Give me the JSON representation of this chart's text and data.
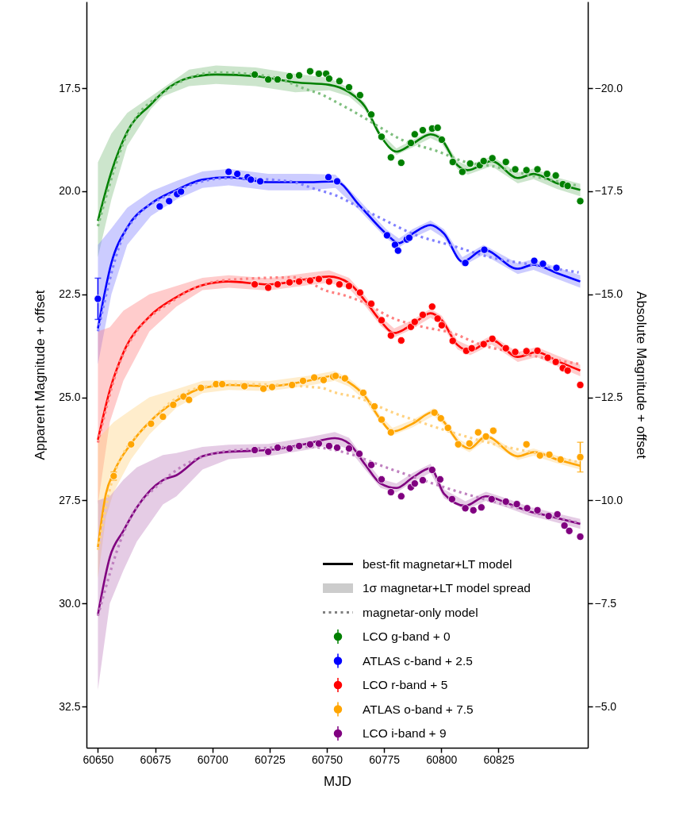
{
  "chart_data": {
    "type": "line",
    "xlabel": "MJD",
    "ylabel": "Apparent Magnitude + offset",
    "y2label": "Absolute Magnitude + offset",
    "xlim": [
      60645,
      60864
    ],
    "xticks": [
      60650,
      60675,
      60700,
      60725,
      60750,
      60775,
      60800,
      60825
    ],
    "ylim": [
      33.5,
      15.4
    ],
    "yticks": [
      17.5,
      {
        "value": 20.0,
        "label": "20.0"
      },
      22.5,
      {
        "value": 25.0,
        "label": "25.0"
      },
      27.5,
      {
        "value": 30.0,
        "label": "30.0"
      },
      32.5
    ],
    "y2lim": [
      -4.0,
      -22.1
    ],
    "y2ticks": [
      {
        "value": -20,
        "label": "−20.0"
      },
      {
        "value": -17.5,
        "label": "−17.5"
      },
      {
        "value": -15,
        "label": "−15.0"
      },
      {
        "value": -12.5,
        "label": "−12.5"
      },
      {
        "value": -10,
        "label": "−10.0"
      },
      {
        "value": -7.5,
        "label": "−7.5"
      },
      {
        "value": -5,
        "label": "−5.0"
      }
    ],
    "grid": false,
    "legend": "bottom right",
    "marker": "circle",
    "annotations": [
      "best-fit magnetar+LT model",
      "1σ magnetar+LT model spread",
      "magnetar-only model"
    ],
    "series": [
      {
        "line_style": "solid",
        "marker": "none",
        "color": "#008000",
        "x": [
          60650,
          60655.9,
          60662.8,
          60673.2,
          60678.4,
          60689.8,
          60701.6,
          60718.9,
          60736.2,
          60751.0,
          60759.7,
          60766.6,
          60773.5,
          60780.4,
          60787.4,
          60795.3,
          60800.2,
          60807.1,
          60811.6,
          60822,
          60833.4,
          60840.3,
          60850.7,
          60860.7
        ],
        "values": [
          20.72,
          19.53,
          18.56,
          17.89,
          17.6,
          17.25,
          17.17,
          17.21,
          17.36,
          17.42,
          17.6,
          17.94,
          18.66,
          19.04,
          18.85,
          18.62,
          18.75,
          19.37,
          19.49,
          19.27,
          19.68,
          19.58,
          19.81,
          19.97
        ],
        "lower": [
          19.3,
          18.6,
          18.1,
          17.7,
          17.5,
          17.05,
          16.95,
          17.0,
          17.15,
          17.25,
          17.5,
          17.85,
          18.58,
          18.96,
          18.76,
          18.53,
          18.66,
          19.27,
          19.38,
          19.15,
          19.55,
          19.45,
          19.67,
          19.82
        ],
        "upper": [
          21.6,
          20.2,
          18.9,
          18.0,
          17.7,
          17.45,
          17.4,
          17.45,
          17.6,
          17.55,
          17.7,
          18.03,
          18.74,
          19.12,
          18.94,
          18.71,
          18.84,
          19.47,
          19.6,
          19.39,
          19.81,
          19.71,
          19.95,
          20.12
        ]
      },
      {
        "line_style": "dotted",
        "marker": "none",
        "color": "#7fbf7f",
        "x": [
          60650,
          60662.8,
          60678.4,
          60701.6,
          60724.4,
          60741.7,
          60747.6,
          60753.8,
          60762.1,
          60773.5,
          60781.5,
          60798.8,
          60810.5,
          60822,
          60839.3,
          60860
        ],
        "values": [
          20.85,
          18.6,
          17.62,
          17.12,
          17.21,
          17.54,
          17.65,
          17.83,
          18.08,
          18.46,
          18.72,
          19.04,
          19.29,
          19.39,
          19.62,
          19.87
        ]
      },
      {
        "type": "scatter",
        "name": "LCO g-band + 0",
        "color": "#008000",
        "x": [
          60718.5,
          60724.4,
          60728.5,
          60733.7,
          60737.9,
          60742.7,
          60746.5,
          60749.7,
          60751.0,
          60755.5,
          60759.7,
          60764.5,
          60769.4,
          60773.9,
          60778.0,
          60782.5,
          60786.7,
          60788.4,
          60791.9,
          60796.0,
          60798.4,
          60800.2,
          60805.0,
          60809.2,
          60812.6,
          60816.8,
          60818.5,
          60822.3,
          60828.2,
          60832.3,
          60837.2,
          60842.0,
          60846.2,
          60850.0,
          60853.1,
          60855.2,
          60860.7
        ],
        "values": [
          17.17,
          17.29,
          17.29,
          17.21,
          17.19,
          17.09,
          17.15,
          17.15,
          17.27,
          17.33,
          17.48,
          17.67,
          18.14,
          18.68,
          19.18,
          19.31,
          18.83,
          18.62,
          18.52,
          18.48,
          18.46,
          18.75,
          19.29,
          19.53,
          19.33,
          19.37,
          19.27,
          19.2,
          19.29,
          19.47,
          19.49,
          19.47,
          19.58,
          19.62,
          19.83,
          19.87,
          20.24
        ]
      },
      {
        "line_style": "solid",
        "marker": "none",
        "color": "#0000ff",
        "x": [
          60650,
          60655.9,
          60662.8,
          60673.2,
          60684.3,
          60695.7,
          60707.1,
          60724.4,
          60741.7,
          60753.8,
          60764.2,
          60775.9,
          60781.5,
          60787.4,
          60795.3,
          60801.2,
          60809.2,
          60818.5,
          60833.4,
          60840.3,
          60850.7,
          60860.7
        ],
        "values": [
          23.33,
          21.74,
          20.88,
          20.3,
          19.97,
          19.72,
          19.66,
          19.78,
          19.78,
          19.76,
          20.34,
          21.03,
          21.26,
          21.03,
          20.82,
          21.03,
          21.71,
          21.42,
          21.88,
          21.78,
          21.99,
          22.19
        ],
        "lower": [
          21.3,
          20.9,
          20.4,
          20.0,
          19.75,
          19.52,
          19.46,
          19.58,
          19.58,
          19.6,
          20.22,
          20.92,
          21.15,
          20.92,
          20.71,
          20.92,
          21.6,
          21.3,
          21.75,
          21.65,
          21.85,
          22.04
        ],
        "upper": [
          24.2,
          22.5,
          21.3,
          20.6,
          20.2,
          19.92,
          19.86,
          19.98,
          19.98,
          19.92,
          20.46,
          21.14,
          21.37,
          21.14,
          20.93,
          21.14,
          21.82,
          21.54,
          22.01,
          21.91,
          22.13,
          22.34
        ]
      },
      {
        "line_style": "dotted",
        "marker": "none",
        "color": "#8080ff",
        "x": [
          60650,
          60662.8,
          60684.3,
          60707.1,
          60733.7,
          60745.1,
          60753.8,
          60764.2,
          60775.9,
          60787.4,
          60804.7,
          60822,
          60839.3,
          60860
        ],
        "values": [
          23.4,
          20.9,
          20.0,
          19.68,
          19.76,
          19.95,
          20.1,
          20.39,
          20.72,
          21.03,
          21.32,
          21.61,
          21.78,
          21.97
        ]
      },
      {
        "type": "scatter",
        "name": "ATLAS c-band + 2.5",
        "color": "#0000ff",
        "x": [
          60650,
          60677.0,
          60681.1,
          60684.6,
          60686.3,
          60707.1,
          60710.9,
          60715.4,
          60716.8,
          60720.9,
          60750.7,
          60754.5,
          60776.3,
          60779.8,
          60781.1,
          60784.9,
          60786.0,
          60810.5,
          60818.8,
          60840.6,
          60844.4,
          60850.3
        ],
        "values": [
          22.61,
          20.37,
          20.24,
          20.07,
          20.01,
          19.53,
          19.58,
          19.66,
          19.72,
          19.76,
          19.66,
          19.76,
          21.07,
          21.3,
          21.44,
          21.17,
          21.13,
          21.74,
          21.42,
          21.69,
          21.76,
          21.86
        ],
        "errors": [
          0.5,
          null,
          null,
          null,
          null,
          null,
          null,
          null,
          null,
          null,
          null,
          null,
          null,
          null,
          null,
          null,
          null,
          null,
          null,
          null,
          null,
          null
        ]
      },
      {
        "line_style": "solid",
        "marker": "none",
        "color": "#ff0000",
        "x": [
          60650,
          60655.2,
          60661.1,
          60672.5,
          60684.3,
          60695.7,
          60707.1,
          60724.4,
          60741.7,
          60751,
          60759.7,
          60766.6,
          60773.5,
          60779.4,
          60787.4,
          60795.3,
          60800.2,
          60807.1,
          60812.6,
          60822,
          60833.4,
          60841.7,
          60850.7,
          60860.7
        ],
        "values": [
          26.03,
          24.83,
          23.92,
          23.04,
          22.57,
          22.28,
          22.19,
          22.26,
          22.13,
          22.07,
          22.23,
          22.65,
          23.15,
          23.44,
          23.23,
          22.96,
          23.13,
          23.73,
          23.87,
          23.61,
          24.02,
          23.9,
          24.12,
          24.35
        ],
        "lower": [
          23.4,
          23.3,
          22.9,
          22.5,
          22.3,
          22.1,
          22.04,
          22.11,
          21.98,
          21.92,
          22.1,
          22.53,
          23.04,
          23.33,
          23.12,
          22.85,
          23.02,
          23.62,
          23.76,
          23.5,
          23.9,
          23.78,
          23.99,
          24.21
        ],
        "upper": [
          27.6,
          25.6,
          24.6,
          23.4,
          22.8,
          22.4,
          22.34,
          22.41,
          22.28,
          22.22,
          22.36,
          22.77,
          23.26,
          23.55,
          23.34,
          23.07,
          23.24,
          23.84,
          23.98,
          23.72,
          24.14,
          24.02,
          24.25,
          24.49
        ]
      },
      {
        "line_style": "dotted",
        "marker": "none",
        "color": "#ff8080",
        "x": [
          60650,
          60661.1,
          60684.3,
          60707.1,
          60736.2,
          60750,
          60757.3,
          60766.6,
          60778,
          60791.9,
          60804.7,
          60817.5,
          60833.4,
          60860
        ],
        "values": [
          26.1,
          23.95,
          22.6,
          22.15,
          22.09,
          22.42,
          22.52,
          22.71,
          23.06,
          23.29,
          23.44,
          23.73,
          23.92,
          24.19
        ]
      },
      {
        "type": "scatter",
        "name": "LCO r-band + 5",
        "color": "#ff0000",
        "x": [
          60718.5,
          60724.4,
          60728.5,
          60733.7,
          60737.9,
          60742.7,
          60746.5,
          60751,
          60755.5,
          60759.7,
          60764.5,
          60769.4,
          60773.9,
          60778,
          60782.5,
          60786.7,
          60788.4,
          60791.9,
          60796,
          60798.4,
          60800.2,
          60805,
          60810.9,
          60813.3,
          60818.5,
          60822.3,
          60828.2,
          60832.3,
          60837.2,
          60842,
          60846.5,
          60850,
          60853.1,
          60855.2,
          60860.7
        ],
        "values": [
          22.26,
          22.34,
          22.26,
          22.21,
          22.19,
          22.17,
          22.13,
          22.19,
          22.26,
          22.3,
          22.46,
          22.73,
          23.13,
          23.5,
          23.62,
          23.29,
          23.17,
          23.0,
          22.8,
          23.09,
          23.25,
          23.63,
          23.87,
          23.81,
          23.71,
          23.58,
          23.81,
          23.9,
          23.88,
          23.87,
          24.04,
          24.14,
          24.29,
          24.35,
          24.7
        ]
      },
      {
        "line_style": "solid",
        "marker": "none",
        "color": "#ffa500",
        "x": [
          60650,
          60653.5,
          60656.9,
          60664.5,
          60672.5,
          60684.3,
          60695.7,
          60707.1,
          60724.4,
          60741.7,
          60753.5,
          60759.7,
          60766.6,
          60773.5,
          60778.7,
          60787.4,
          60796.7,
          60801.2,
          60808.1,
          60812.3,
          60819.5,
          60833.4,
          60840.3,
          60850.7,
          60860.7
        ],
        "values": [
          28.63,
          27.34,
          26.82,
          26.12,
          25.6,
          25.08,
          24.77,
          24.7,
          24.73,
          24.6,
          24.48,
          24.64,
          24.97,
          25.54,
          25.83,
          25.64,
          25.35,
          25.6,
          26.12,
          26.24,
          25.95,
          26.43,
          26.33,
          26.51,
          26.66
        ],
        "lower": [
          26.0,
          25.8,
          25.6,
          25.3,
          25.0,
          24.8,
          24.6,
          24.58,
          24.61,
          24.48,
          24.36,
          24.54,
          24.87,
          25.45,
          25.74,
          25.55,
          25.26,
          25.51,
          26.03,
          26.15,
          25.86,
          26.34,
          26.24,
          26.42,
          26.57
        ],
        "upper": [
          29.4,
          27.9,
          27.3,
          26.5,
          25.9,
          25.25,
          24.9,
          24.82,
          24.85,
          24.72,
          24.6,
          24.74,
          25.07,
          25.63,
          25.92,
          25.73,
          25.44,
          25.69,
          26.21,
          26.33,
          26.04,
          26.52,
          26.42,
          26.6,
          26.75
        ]
      },
      {
        "line_style": "dotted",
        "marker": "none",
        "color": "#ffd280",
        "x": [
          60650,
          60656.9,
          60672.5,
          60695.7,
          60713,
          60747.6,
          60752.8,
          60764.2,
          60778,
          60790.8,
          60804.7,
          60822,
          60839.3,
          60860
        ],
        "values": [
          28.7,
          26.9,
          25.62,
          24.75,
          24.68,
          24.77,
          24.87,
          25.02,
          25.35,
          25.6,
          25.85,
          26.12,
          26.33,
          26.57
        ]
      },
      {
        "type": "scatter",
        "name": "ATLAS o-band + 7.5",
        "color": "#ffa500",
        "x": [
          60656.9,
          60664.5,
          60673.2,
          60678.4,
          60682.9,
          60687.4,
          60689.8,
          60695,
          60701.6,
          60704.3,
          60714,
          60722.3,
          60726.1,
          60734.8,
          60739.6,
          60744.5,
          60748.6,
          60752.8,
          60753.8,
          60757.9,
          60765.9,
          60770.8,
          60773.9,
          60778,
          60797,
          60799.8,
          60802.9,
          60807.4,
          60812.3,
          60816.1,
          60819.5,
          60822.7,
          60837.2,
          60843.1,
          60847.2,
          60852.1,
          60860.7
        ],
        "values": [
          26.91,
          26.14,
          25.64,
          25.47,
          25.18,
          24.98,
          25.06,
          24.77,
          24.68,
          24.68,
          24.73,
          24.79,
          24.75,
          24.7,
          24.6,
          24.52,
          24.58,
          24.5,
          24.48,
          24.54,
          24.89,
          25.22,
          25.54,
          25.85,
          25.37,
          25.51,
          25.74,
          26.14,
          26.12,
          25.85,
          25.95,
          25.81,
          26.14,
          26.41,
          26.39,
          26.51,
          26.45
        ],
        "errors": [
          0.1,
          null,
          null,
          null,
          null,
          null,
          null,
          null,
          null,
          null,
          null,
          null,
          null,
          null,
          null,
          null,
          null,
          null,
          null,
          null,
          null,
          null,
          null,
          null,
          null,
          null,
          null,
          null,
          null,
          null,
          null,
          null,
          null,
          null,
          null,
          null,
          0.36
        ]
      },
      {
        "line_style": "solid",
        "marker": "none",
        "color": "#800080",
        "x": [
          60650,
          60655.2,
          60661.1,
          60667,
          60678.4,
          60684.3,
          60695.7,
          60707.1,
          60724.4,
          60741.7,
          60753.5,
          60759.7,
          60766.6,
          60773.5,
          60780.4,
          60787.4,
          60795.3,
          60801.2,
          60810.5,
          60819.5,
          60828.9,
          60838.2,
          60847.2,
          60860.7
        ],
        "values": [
          30.27,
          28.88,
          28.24,
          27.67,
          27.01,
          26.89,
          26.43,
          26.32,
          26.28,
          26.12,
          25.99,
          26.12,
          26.62,
          27.09,
          27.2,
          26.95,
          26.72,
          27.34,
          27.63,
          27.4,
          27.57,
          27.76,
          27.88,
          28.07
        ],
        "lower": [
          27.5,
          27.4,
          27.0,
          26.7,
          26.4,
          26.35,
          26.2,
          26.15,
          26.13,
          25.97,
          25.84,
          25.98,
          26.5,
          26.98,
          27.09,
          26.84,
          26.61,
          27.23,
          27.52,
          27.29,
          27.46,
          27.65,
          27.77,
          27.95
        ],
        "upper": [
          32.1,
          30.0,
          29.2,
          28.5,
          27.6,
          27.4,
          26.75,
          26.5,
          26.43,
          26.27,
          26.14,
          26.26,
          26.74,
          27.2,
          27.31,
          27.06,
          26.83,
          27.45,
          27.74,
          27.51,
          27.68,
          27.87,
          27.99,
          28.19
        ]
      },
      {
        "line_style": "dotted",
        "marker": "none",
        "color": "#bf80bf",
        "x": [
          60650,
          60661.1,
          60678.4,
          60707.1,
          60741.7,
          60757.3,
          60775.9,
          60810.5,
          60832.3,
          60860.7
        ],
        "values": [
          30.3,
          28.3,
          27.03,
          26.3,
          26.2,
          26.33,
          26.7,
          27.34,
          27.67,
          28.05
        ]
      },
      {
        "type": "scatter",
        "name": "LCO i-band + 9",
        "color": "#800080",
        "x": [
          60718.5,
          60724.4,
          60728.5,
          60733.7,
          60737.9,
          60742.7,
          60746.5,
          60751,
          60754.5,
          60759.7,
          60764.2,
          60769.4,
          60773.9,
          60778,
          60782.5,
          60786.7,
          60788.4,
          60791.9,
          60796,
          60799.5,
          60804.7,
          60810.5,
          60814,
          60817.5,
          60822,
          60828.2,
          60833,
          60837.5,
          60842,
          60846.9,
          60850.7,
          60853.8,
          60855.9,
          60860.7
        ],
        "values": [
          26.28,
          26.32,
          26.22,
          26.24,
          26.18,
          26.14,
          26.12,
          26.18,
          26.22,
          26.24,
          26.37,
          26.64,
          26.99,
          27.3,
          27.4,
          27.18,
          27.09,
          27.01,
          26.76,
          26.99,
          27.47,
          27.69,
          27.74,
          27.67,
          27.47,
          27.53,
          27.59,
          27.69,
          27.74,
          27.88,
          27.84,
          28.11,
          28.24,
          28.38
        ]
      }
    ]
  }
}
